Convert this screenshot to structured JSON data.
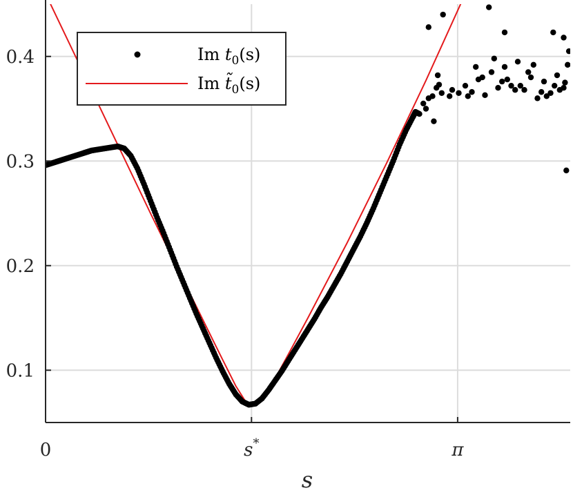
{
  "chart_data": {
    "type": "scatter",
    "xlabel": "s",
    "x_ticks": [
      {
        "value": 0,
        "label": "0"
      },
      {
        "value": 1.57,
        "label": "s*"
      },
      {
        "value": 3.14159,
        "label": "π"
      }
    ],
    "y_ticks": [
      {
        "value": 0.1,
        "label": "0.1"
      },
      {
        "value": 0.2,
        "label": "0.2"
      },
      {
        "value": 0.3,
        "label": "0.3"
      },
      {
        "value": 0.4,
        "label": "0.4"
      }
    ],
    "xlim": [
      0,
      4.0
    ],
    "ylim": [
      0.05,
      0.45
    ],
    "grid": true,
    "legend_position": "top-left",
    "legend": [
      {
        "label_prefix": "Im ",
        "label_var": "t",
        "label_sub": "0",
        "label_suffix": "(s)",
        "marker": "dot",
        "color": "#000000"
      },
      {
        "label_prefix": "Im ",
        "label_var": "t̃",
        "label_sub": "0",
        "label_suffix": "(s)",
        "marker": "line",
        "color": "#e41a1c"
      }
    ],
    "series": [
      {
        "name": "Im t0(s)",
        "style": "dots",
        "color": "#000000",
        "points": [
          [
            0.0,
            0.296
          ],
          [
            0.05,
            0.298
          ],
          [
            0.1,
            0.3
          ],
          [
            0.15,
            0.302
          ],
          [
            0.2,
            0.304
          ],
          [
            0.25,
            0.306
          ],
          [
            0.3,
            0.308
          ],
          [
            0.35,
            0.31
          ],
          [
            0.4,
            0.311
          ],
          [
            0.45,
            0.312
          ],
          [
            0.5,
            0.313
          ],
          [
            0.55,
            0.314
          ],
          [
            0.6,
            0.312
          ],
          [
            0.65,
            0.305
          ],
          [
            0.7,
            0.293
          ],
          [
            0.75,
            0.278
          ],
          [
            0.8,
            0.262
          ],
          [
            0.85,
            0.246
          ],
          [
            0.9,
            0.231
          ],
          [
            0.95,
            0.215
          ],
          [
            1.0,
            0.199
          ],
          [
            1.05,
            0.184
          ],
          [
            1.1,
            0.169
          ],
          [
            1.15,
            0.154
          ],
          [
            1.2,
            0.14
          ],
          [
            1.25,
            0.126
          ],
          [
            1.3,
            0.112
          ],
          [
            1.35,
            0.099
          ],
          [
            1.4,
            0.087
          ],
          [
            1.45,
            0.077
          ],
          [
            1.5,
            0.07
          ],
          [
            1.55,
            0.067
          ],
          [
            1.6,
            0.068
          ],
          [
            1.65,
            0.073
          ],
          [
            1.7,
            0.081
          ],
          [
            1.75,
            0.09
          ],
          [
            1.8,
            0.099
          ],
          [
            1.85,
            0.109
          ],
          [
            1.9,
            0.119
          ],
          [
            1.95,
            0.129
          ],
          [
            2.0,
            0.139
          ],
          [
            2.05,
            0.149
          ],
          [
            2.1,
            0.16
          ],
          [
            2.15,
            0.17
          ],
          [
            2.2,
            0.181
          ],
          [
            2.25,
            0.192
          ],
          [
            2.3,
            0.204
          ],
          [
            2.35,
            0.216
          ],
          [
            2.4,
            0.228
          ],
          [
            2.45,
            0.241
          ],
          [
            2.5,
            0.255
          ],
          [
            2.55,
            0.27
          ],
          [
            2.6,
            0.285
          ],
          [
            2.65,
            0.3
          ],
          [
            2.7,
            0.316
          ],
          [
            2.75,
            0.33
          ],
          [
            2.8,
            0.342
          ],
          [
            2.82,
            0.347
          ],
          [
            2.85,
            0.345
          ],
          [
            2.88,
            0.355
          ],
          [
            2.9,
            0.35
          ],
          [
            2.92,
            0.36
          ],
          [
            2.95,
            0.362
          ],
          [
            2.98,
            0.37
          ],
          [
            3.0,
            0.373
          ],
          [
            3.02,
            0.365
          ],
          [
            2.96,
            0.338
          ],
          [
            2.99,
            0.382
          ],
          [
            3.1,
            0.368
          ],
          [
            2.92,
            0.428
          ],
          [
            3.03,
            0.44
          ],
          [
            3.08,
            0.362
          ],
          [
            3.15,
            0.365
          ],
          [
            3.2,
            0.372
          ],
          [
            3.25,
            0.366
          ],
          [
            3.3,
            0.378
          ],
          [
            3.35,
            0.363
          ],
          [
            3.4,
            0.385
          ],
          [
            3.45,
            0.37
          ],
          [
            3.5,
            0.39
          ],
          [
            3.55,
            0.372
          ],
          [
            3.6,
            0.395
          ],
          [
            3.65,
            0.368
          ],
          [
            3.7,
            0.38
          ],
          [
            3.75,
            0.36
          ],
          [
            3.8,
            0.376
          ],
          [
            3.85,
            0.365
          ],
          [
            3.9,
            0.382
          ],
          [
            3.95,
            0.37
          ],
          [
            3.98,
            0.392
          ],
          [
            3.22,
            0.362
          ],
          [
            3.28,
            0.39
          ],
          [
            3.33,
            0.38
          ],
          [
            3.42,
            0.398
          ],
          [
            3.48,
            0.376
          ],
          [
            3.52,
            0.378
          ],
          [
            3.58,
            0.368
          ],
          [
            3.62,
            0.372
          ],
          [
            3.68,
            0.385
          ],
          [
            3.72,
            0.392
          ],
          [
            3.78,
            0.366
          ],
          [
            3.82,
            0.362
          ],
          [
            3.88,
            0.372
          ],
          [
            3.92,
            0.368
          ],
          [
            3.96,
            0.375
          ],
          [
            3.38,
            0.447
          ],
          [
            3.5,
            0.423
          ],
          [
            3.87,
            0.423
          ],
          [
            3.95,
            0.418
          ],
          [
            3.99,
            0.405
          ],
          [
            3.97,
            0.291
          ]
        ]
      },
      {
        "name": "Im t̃0(s)",
        "style": "line",
        "color": "#e41a1c",
        "points": [
          [
            0.0,
            0.46
          ],
          [
            0.4,
            0.355
          ],
          [
            0.8,
            0.25
          ],
          [
            1.0,
            0.199
          ],
          [
            1.2,
            0.148
          ],
          [
            1.35,
            0.11
          ],
          [
            1.45,
            0.085
          ],
          [
            1.52,
            0.071
          ],
          [
            1.57,
            0.066
          ],
          [
            1.62,
            0.069
          ],
          [
            1.68,
            0.078
          ],
          [
            1.75,
            0.092
          ],
          [
            1.85,
            0.115
          ],
          [
            2.0,
            0.15
          ],
          [
            2.3,
            0.222
          ],
          [
            2.6,
            0.298
          ],
          [
            2.9,
            0.377
          ],
          [
            3.2,
            0.46
          ]
        ]
      }
    ]
  }
}
